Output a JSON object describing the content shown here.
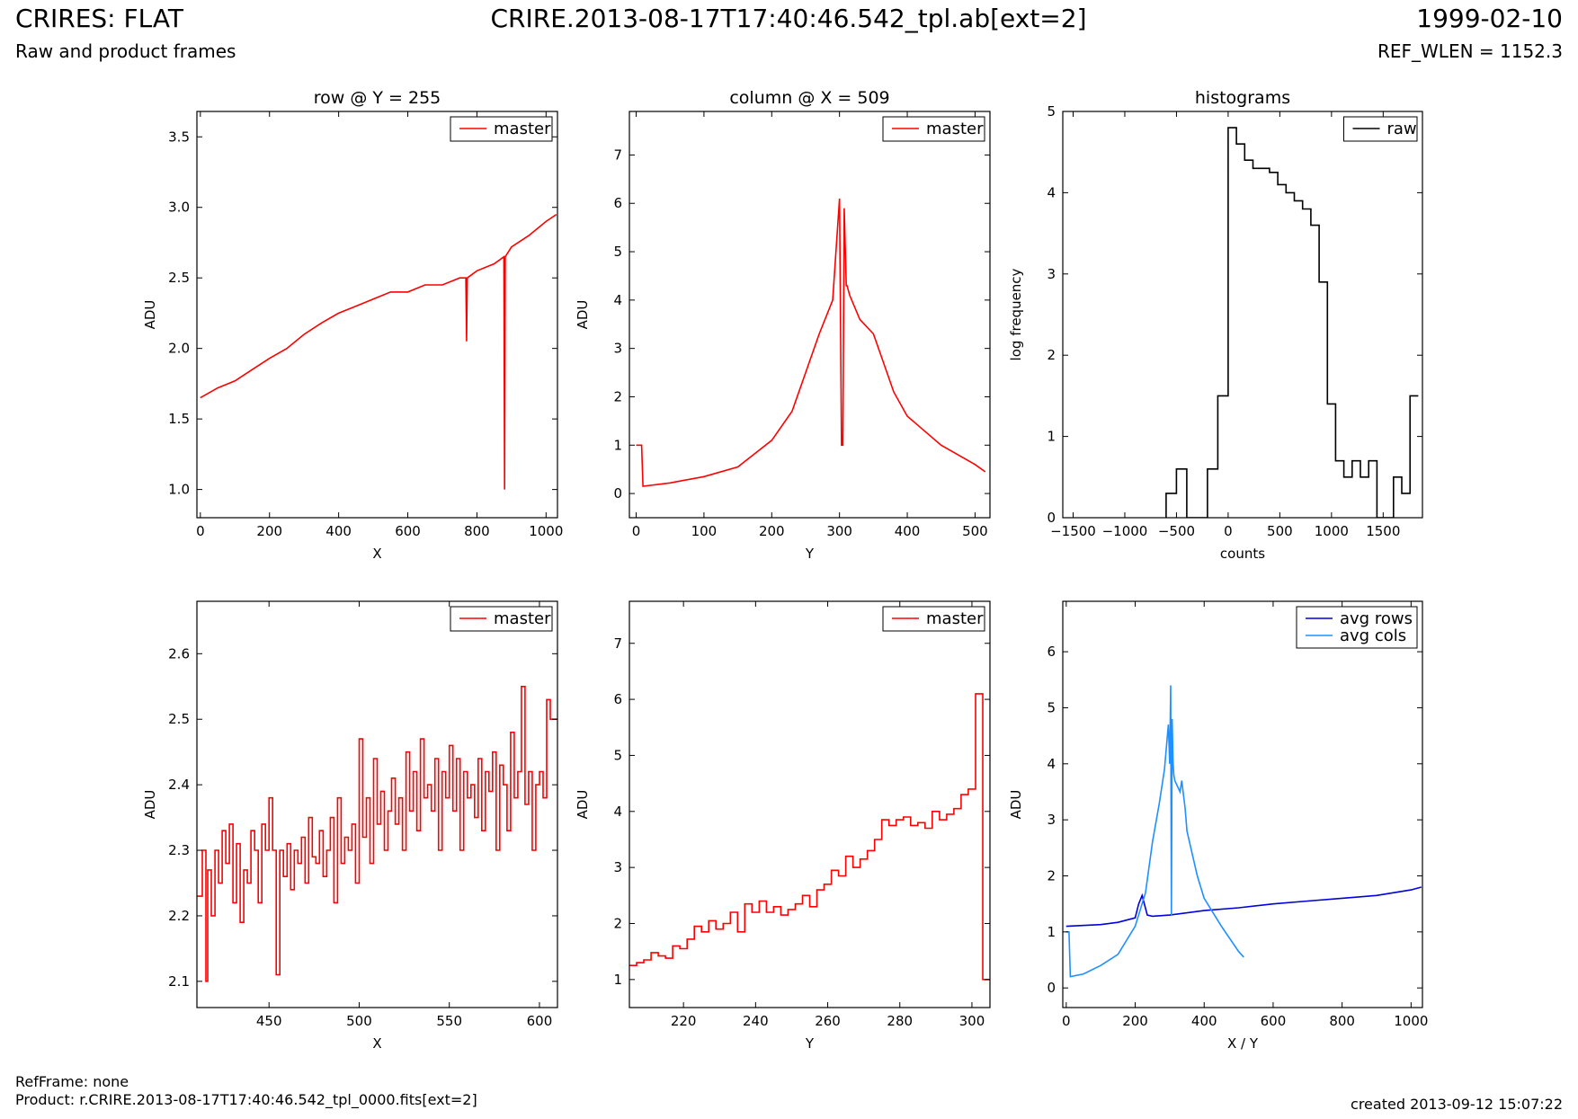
{
  "header": {
    "title": "CRIRES: FLAT",
    "subtitle": "Raw and product frames",
    "file": "CRIRE.2013-08-17T17:40:46.542_tpl.ab[ext=2]",
    "date": "1999-02-10",
    "ref_wlen": "REF_WLEN = 1152.3"
  },
  "footer": {
    "refframe": "RefFrame: none",
    "product": "Product: r.CRIRE.2013-08-17T17:40:46.542_tpl_0000.fits[ext=2]",
    "created": "created 2013-09-12 15:07:22"
  },
  "colors": {
    "master": "#ff0000",
    "raw": "#000000",
    "avg_rows": "#0000dd",
    "avg_cols": "#1e90ff"
  },
  "chart_data": [
    {
      "id": "row-full",
      "type": "line",
      "title": "row @ Y = 255",
      "xlabel": "X",
      "ylabel": "ADU",
      "xlim": [
        -10,
        1033
      ],
      "ylim": [
        0.8,
        3.68
      ],
      "xticks": [
        0,
        200,
        400,
        600,
        800,
        1000
      ],
      "yticks": [
        1.0,
        1.5,
        2.0,
        2.5,
        3.0,
        3.5
      ],
      "ytick_decimals": 1,
      "legend": "top-right",
      "series": [
        {
          "name": "master",
          "color": "#ff0000",
          "x": [
            0,
            50,
            100,
            150,
            200,
            250,
            300,
            350,
            400,
            450,
            500,
            550,
            600,
            650,
            700,
            750,
            768,
            770,
            772,
            800,
            850,
            878,
            880,
            882,
            900,
            950,
            1000,
            1030
          ],
          "y": [
            1.65,
            1.72,
            1.77,
            1.85,
            1.93,
            2.0,
            2.1,
            2.18,
            2.25,
            2.3,
            2.35,
            2.4,
            2.4,
            2.45,
            2.45,
            2.5,
            2.5,
            2.05,
            2.5,
            2.55,
            2.6,
            2.65,
            1.0,
            2.65,
            2.72,
            2.8,
            2.9,
            2.95
          ]
        }
      ]
    },
    {
      "id": "col-full",
      "type": "line",
      "title": "column @ X = 509",
      "xlabel": "Y",
      "ylabel": "ADU",
      "xlim": [
        -10,
        522
      ],
      "ylim": [
        -0.5,
        7.9
      ],
      "xticks": [
        0,
        100,
        200,
        300,
        400,
        500
      ],
      "yticks": [
        0,
        1,
        2,
        3,
        4,
        5,
        6,
        7
      ],
      "ytick_decimals": 0,
      "legend": "top-right",
      "series": [
        {
          "name": "master",
          "color": "#ff0000",
          "x": [
            0,
            8,
            10,
            50,
            100,
            150,
            200,
            230,
            250,
            270,
            290,
            300,
            303,
            305,
            307,
            310,
            311,
            315,
            330,
            350,
            380,
            400,
            450,
            500,
            515
          ],
          "y": [
            1.0,
            1.0,
            0.15,
            0.22,
            0.35,
            0.55,
            1.1,
            1.7,
            2.5,
            3.3,
            4.0,
            6.1,
            1.0,
            1.0,
            5.9,
            4.3,
            4.3,
            4.1,
            3.6,
            3.3,
            2.1,
            1.6,
            1.0,
            0.6,
            0.45
          ]
        }
      ]
    },
    {
      "id": "hist",
      "type": "line",
      "title": "histograms",
      "xlabel": "counts",
      "ylabel": "log frequency",
      "xlim": [
        -1600,
        1880
      ],
      "ylim": [
        0,
        5
      ],
      "xticks": [
        -1500,
        -1000,
        -500,
        0,
        500,
        1000,
        1500
      ],
      "yticks": [
        0,
        1,
        2,
        3,
        4,
        5
      ],
      "ytick_decimals": 0,
      "legend": "top-right",
      "series": [
        {
          "name": "raw",
          "color": "#000000",
          "step": true,
          "x": [
            -600,
            -600,
            -500,
            -500,
            -400,
            -400,
            -300,
            -300,
            -200,
            -200,
            -100,
            -100,
            0,
            0,
            80,
            80,
            160,
            160,
            240,
            240,
            320,
            320,
            400,
            400,
            480,
            480,
            560,
            560,
            640,
            640,
            720,
            720,
            800,
            800,
            880,
            880,
            960,
            960,
            1040,
            1040,
            1120,
            1120,
            1200,
            1200,
            1280,
            1280,
            1360,
            1360,
            1440,
            1440,
            1520,
            1520,
            1600,
            1600,
            1680,
            1680,
            1760,
            1760,
            1840,
            1840
          ],
          "y": [
            0,
            0.3,
            0.3,
            0.6,
            0.6,
            0,
            0,
            0,
            0,
            0.6,
            0.6,
            1.5,
            2.4,
            4.8,
            4.8,
            4.6,
            4.6,
            4.4,
            4.4,
            4.3,
            4.3,
            4.3,
            4.3,
            4.25,
            4.25,
            4.1,
            4.1,
            4.0,
            4.0,
            3.9,
            3.9,
            3.8,
            3.8,
            3.6,
            3.6,
            2.9,
            2.9,
            1.4,
            1.4,
            0.7,
            0.7,
            0.5,
            0.5,
            0.7,
            0.7,
            0.5,
            0.5,
            0.7,
            0.7,
            0,
            0,
            0,
            0,
            0.5,
            0.5,
            0.3,
            0.3,
            1.5,
            1.5,
            1.5
          ]
        }
      ]
    },
    {
      "id": "row-zoom",
      "type": "line",
      "title": "",
      "xlabel": "X",
      "ylabel": "ADU",
      "xlim": [
        410,
        610
      ],
      "ylim": [
        2.06,
        2.68
      ],
      "xticks": [
        450,
        500,
        550,
        600
      ],
      "yticks": [
        2.1,
        2.2,
        2.3,
        2.4,
        2.5,
        2.6
      ],
      "ytick_decimals": 1,
      "legend": "top-right",
      "series": [
        {
          "name": "master",
          "color": "#ff0000",
          "step": true,
          "x": [
            410,
            413,
            415,
            416,
            418,
            420,
            422,
            424,
            426,
            428,
            430,
            432,
            434,
            436,
            438,
            440,
            442,
            444,
            446,
            448,
            450,
            452,
            454,
            456,
            458,
            460,
            462,
            464,
            466,
            468,
            470,
            472,
            474,
            476,
            478,
            480,
            482,
            484,
            486,
            488,
            490,
            492,
            494,
            496,
            498,
            500,
            502,
            504,
            506,
            508,
            510,
            512,
            514,
            516,
            518,
            520,
            522,
            524,
            526,
            528,
            530,
            532,
            534,
            536,
            538,
            540,
            542,
            544,
            546,
            548,
            550,
            552,
            554,
            556,
            558,
            560,
            562,
            564,
            566,
            568,
            570,
            572,
            574,
            576,
            578,
            580,
            582,
            584,
            586,
            588,
            590,
            592,
            594,
            596,
            598,
            600,
            602,
            604,
            606,
            608,
            610
          ],
          "y": [
            2.23,
            2.3,
            2.1,
            2.27,
            2.2,
            2.3,
            2.25,
            2.33,
            2.28,
            2.34,
            2.22,
            2.31,
            2.19,
            2.27,
            2.25,
            2.33,
            2.3,
            2.22,
            2.34,
            2.3,
            2.38,
            2.3,
            2.11,
            2.3,
            2.26,
            2.31,
            2.24,
            2.3,
            2.28,
            2.32,
            2.25,
            2.35,
            2.29,
            2.28,
            2.33,
            2.26,
            2.3,
            2.35,
            2.22,
            2.38,
            2.28,
            2.32,
            2.3,
            2.34,
            2.25,
            2.47,
            2.32,
            2.38,
            2.28,
            2.44,
            2.34,
            2.39,
            2.3,
            2.36,
            2.41,
            2.34,
            2.38,
            2.3,
            2.45,
            2.36,
            2.42,
            2.33,
            2.47,
            2.38,
            2.4,
            2.36,
            2.44,
            2.3,
            2.42,
            2.38,
            2.46,
            2.36,
            2.44,
            2.3,
            2.42,
            2.38,
            2.4,
            2.35,
            2.44,
            2.33,
            2.42,
            2.39,
            2.45,
            2.3,
            2.43,
            2.4,
            2.33,
            2.48,
            2.38,
            2.42,
            2.55,
            2.37,
            2.42,
            2.3,
            2.4,
            2.42,
            2.38,
            2.53,
            2.5,
            2.5,
            2.5
          ]
        }
      ]
    },
    {
      "id": "col-zoom",
      "type": "line",
      "title": "",
      "xlabel": "Y",
      "ylabel": "ADU",
      "xlim": [
        205,
        305
      ],
      "ylim": [
        0.5,
        7.75
      ],
      "xticks": [
        220,
        240,
        260,
        280,
        300
      ],
      "yticks": [
        1,
        2,
        3,
        4,
        5,
        6,
        7
      ],
      "ytick_decimals": 0,
      "legend": "top-right",
      "series": [
        {
          "name": "master",
          "color": "#ff0000",
          "step": true,
          "x": [
            205,
            207,
            209,
            211,
            213,
            215,
            217,
            219,
            221,
            223,
            225,
            227,
            229,
            231,
            233,
            235,
            237,
            239,
            241,
            243,
            245,
            247,
            249,
            251,
            253,
            255,
            257,
            259,
            261,
            263,
            265,
            267,
            269,
            271,
            273,
            275,
            277,
            279,
            281,
            283,
            285,
            287,
            289,
            291,
            293,
            295,
            297,
            299,
            301,
            302,
            303,
            304,
            305
          ],
          "y": [
            1.25,
            1.3,
            1.35,
            1.48,
            1.42,
            1.38,
            1.6,
            1.55,
            1.72,
            1.95,
            1.85,
            2.05,
            1.9,
            2.0,
            2.2,
            1.85,
            2.35,
            2.2,
            2.4,
            2.2,
            2.3,
            2.15,
            2.25,
            2.35,
            2.5,
            2.3,
            2.6,
            2.7,
            2.95,
            2.85,
            3.2,
            3.0,
            3.15,
            3.3,
            3.5,
            3.85,
            3.75,
            3.85,
            3.9,
            3.75,
            3.8,
            3.7,
            4.0,
            3.85,
            3.95,
            4.05,
            4.3,
            4.4,
            6.1,
            6.1,
            1.0,
            1.0,
            1.0
          ]
        }
      ]
    },
    {
      "id": "avg",
      "type": "line",
      "title": "",
      "xlabel": "X / Y",
      "ylabel": "ADU",
      "xlim": [
        -10,
        1033
      ],
      "ylim": [
        -0.35,
        6.9
      ],
      "xticks": [
        0,
        200,
        400,
        600,
        800,
        1000
      ],
      "yticks": [
        0,
        1,
        2,
        3,
        4,
        5,
        6
      ],
      "ytick_decimals": 0,
      "legend": "top-right",
      "series": [
        {
          "name": "avg rows",
          "color": "#0000dd",
          "x": [
            0,
            100,
            150,
            200,
            210,
            220,
            235,
            250,
            300,
            400,
            500,
            600,
            700,
            800,
            900,
            1000,
            1030
          ],
          "y": [
            1.1,
            1.13,
            1.17,
            1.25,
            1.5,
            1.65,
            1.3,
            1.28,
            1.3,
            1.38,
            1.43,
            1.5,
            1.55,
            1.6,
            1.65,
            1.75,
            1.8
          ]
        },
        {
          "name": "avg cols",
          "color": "#1e90ff",
          "x": [
            0,
            8,
            12,
            50,
            100,
            150,
            200,
            230,
            250,
            270,
            285,
            296,
            300,
            303,
            305,
            307,
            310,
            312,
            315,
            330,
            335,
            345,
            350,
            380,
            400,
            450,
            500,
            515
          ],
          "y": [
            1.0,
            1.0,
            0.2,
            0.25,
            0.4,
            0.6,
            1.1,
            1.7,
            2.6,
            3.3,
            3.9,
            4.7,
            4.0,
            5.4,
            1.3,
            4.8,
            4.0,
            3.8,
            3.7,
            3.5,
            3.7,
            3.2,
            2.8,
            2.0,
            1.6,
            1.1,
            0.65,
            0.55
          ]
        }
      ]
    }
  ]
}
